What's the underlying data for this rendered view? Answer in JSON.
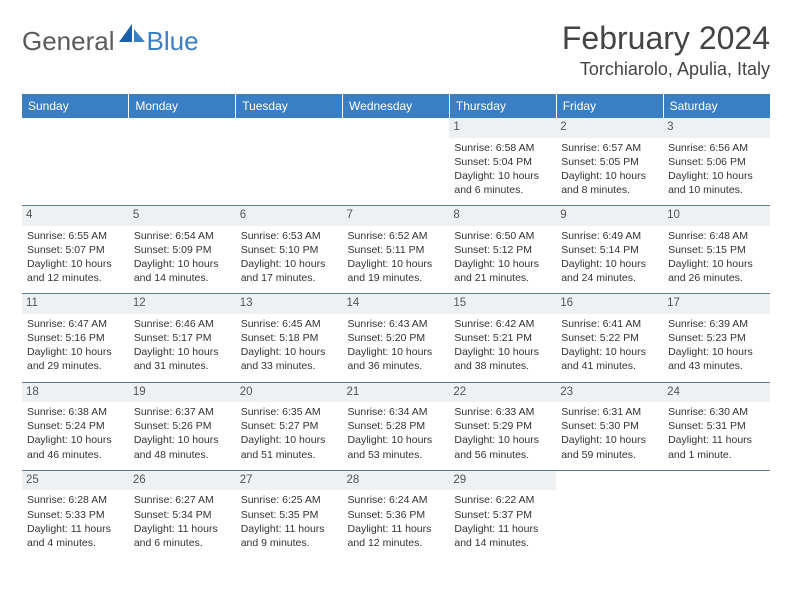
{
  "logo": {
    "general": "General",
    "blue": "Blue"
  },
  "title": "February 2024",
  "location": "Torchiarolo, Apulia, Italy",
  "colors": {
    "header_bg": "#3a7fc4",
    "header_text": "#ffffff",
    "daynum_bg": "#eef0f2",
    "row_border": "#5a7a9a",
    "body_text": "#333333",
    "title_text": "#444444",
    "logo_gray": "#5b5b5b",
    "logo_blue": "#3a7fc4"
  },
  "day_headers": [
    "Sunday",
    "Monday",
    "Tuesday",
    "Wednesday",
    "Thursday",
    "Friday",
    "Saturday"
  ],
  "weeks": [
    [
      null,
      null,
      null,
      null,
      {
        "n": "1",
        "sr": "6:58 AM",
        "ss": "5:04 PM",
        "dl": "10 hours and 6 minutes."
      },
      {
        "n": "2",
        "sr": "6:57 AM",
        "ss": "5:05 PM",
        "dl": "10 hours and 8 minutes."
      },
      {
        "n": "3",
        "sr": "6:56 AM",
        "ss": "5:06 PM",
        "dl": "10 hours and 10 minutes."
      }
    ],
    [
      {
        "n": "4",
        "sr": "6:55 AM",
        "ss": "5:07 PM",
        "dl": "10 hours and 12 minutes."
      },
      {
        "n": "5",
        "sr": "6:54 AM",
        "ss": "5:09 PM",
        "dl": "10 hours and 14 minutes."
      },
      {
        "n": "6",
        "sr": "6:53 AM",
        "ss": "5:10 PM",
        "dl": "10 hours and 17 minutes."
      },
      {
        "n": "7",
        "sr": "6:52 AM",
        "ss": "5:11 PM",
        "dl": "10 hours and 19 minutes."
      },
      {
        "n": "8",
        "sr": "6:50 AM",
        "ss": "5:12 PM",
        "dl": "10 hours and 21 minutes."
      },
      {
        "n": "9",
        "sr": "6:49 AM",
        "ss": "5:14 PM",
        "dl": "10 hours and 24 minutes."
      },
      {
        "n": "10",
        "sr": "6:48 AM",
        "ss": "5:15 PM",
        "dl": "10 hours and 26 minutes."
      }
    ],
    [
      {
        "n": "11",
        "sr": "6:47 AM",
        "ss": "5:16 PM",
        "dl": "10 hours and 29 minutes."
      },
      {
        "n": "12",
        "sr": "6:46 AM",
        "ss": "5:17 PM",
        "dl": "10 hours and 31 minutes."
      },
      {
        "n": "13",
        "sr": "6:45 AM",
        "ss": "5:18 PM",
        "dl": "10 hours and 33 minutes."
      },
      {
        "n": "14",
        "sr": "6:43 AM",
        "ss": "5:20 PM",
        "dl": "10 hours and 36 minutes."
      },
      {
        "n": "15",
        "sr": "6:42 AM",
        "ss": "5:21 PM",
        "dl": "10 hours and 38 minutes."
      },
      {
        "n": "16",
        "sr": "6:41 AM",
        "ss": "5:22 PM",
        "dl": "10 hours and 41 minutes."
      },
      {
        "n": "17",
        "sr": "6:39 AM",
        "ss": "5:23 PM",
        "dl": "10 hours and 43 minutes."
      }
    ],
    [
      {
        "n": "18",
        "sr": "6:38 AM",
        "ss": "5:24 PM",
        "dl": "10 hours and 46 minutes."
      },
      {
        "n": "19",
        "sr": "6:37 AM",
        "ss": "5:26 PM",
        "dl": "10 hours and 48 minutes."
      },
      {
        "n": "20",
        "sr": "6:35 AM",
        "ss": "5:27 PM",
        "dl": "10 hours and 51 minutes."
      },
      {
        "n": "21",
        "sr": "6:34 AM",
        "ss": "5:28 PM",
        "dl": "10 hours and 53 minutes."
      },
      {
        "n": "22",
        "sr": "6:33 AM",
        "ss": "5:29 PM",
        "dl": "10 hours and 56 minutes."
      },
      {
        "n": "23",
        "sr": "6:31 AM",
        "ss": "5:30 PM",
        "dl": "10 hours and 59 minutes."
      },
      {
        "n": "24",
        "sr": "6:30 AM",
        "ss": "5:31 PM",
        "dl": "11 hours and 1 minute."
      }
    ],
    [
      {
        "n": "25",
        "sr": "6:28 AM",
        "ss": "5:33 PM",
        "dl": "11 hours and 4 minutes."
      },
      {
        "n": "26",
        "sr": "6:27 AM",
        "ss": "5:34 PM",
        "dl": "11 hours and 6 minutes."
      },
      {
        "n": "27",
        "sr": "6:25 AM",
        "ss": "5:35 PM",
        "dl": "11 hours and 9 minutes."
      },
      {
        "n": "28",
        "sr": "6:24 AM",
        "ss": "5:36 PM",
        "dl": "11 hours and 12 minutes."
      },
      {
        "n": "29",
        "sr": "6:22 AM",
        "ss": "5:37 PM",
        "dl": "11 hours and 14 minutes."
      },
      null,
      null
    ]
  ],
  "labels": {
    "sunrise": "Sunrise: ",
    "sunset": "Sunset: ",
    "daylight": "Daylight: "
  }
}
